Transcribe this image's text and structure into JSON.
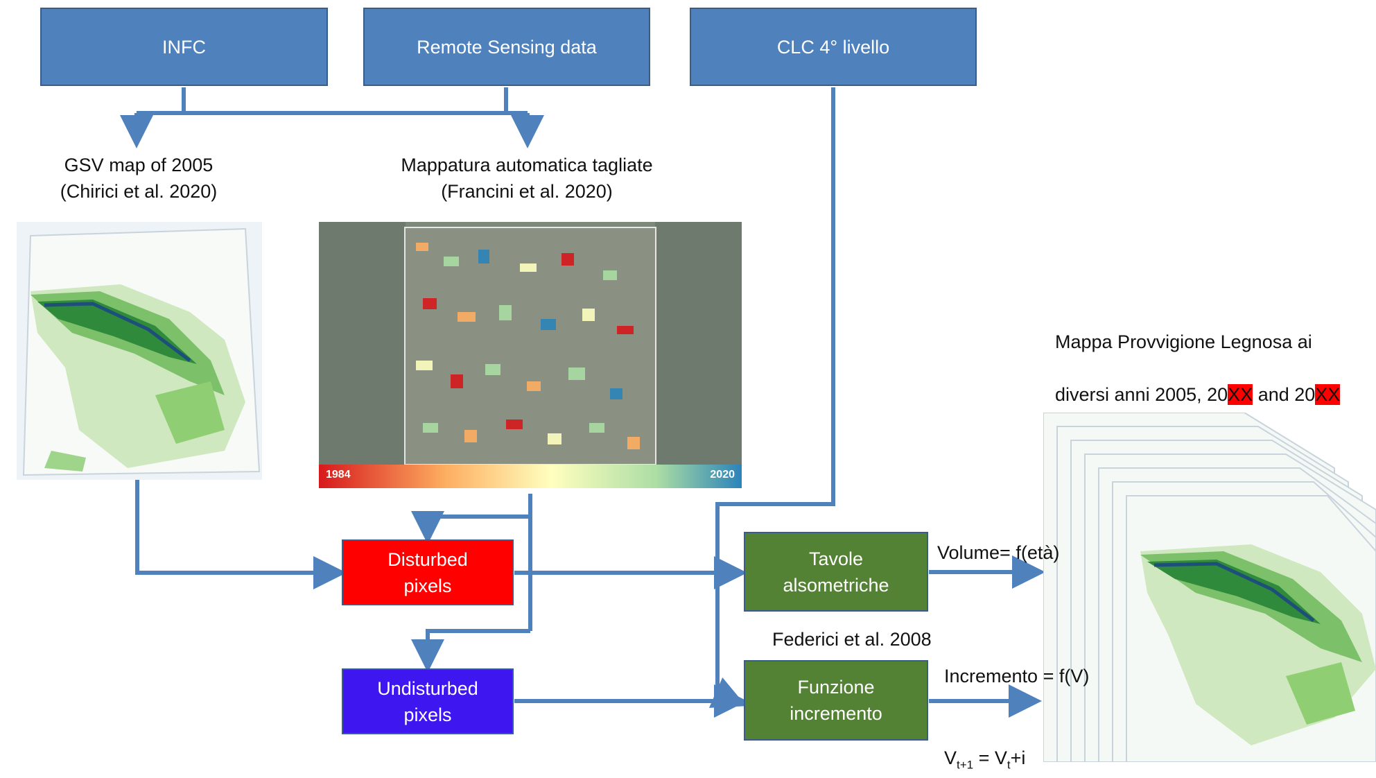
{
  "colors": {
    "box_blue": "#4f81bd",
    "box_red": "#ff0000",
    "box_violet": "#3e16f0",
    "box_green": "#548235",
    "connector": "#4f81bd",
    "highlight": "#ff0000"
  },
  "top_boxes": {
    "infc": "INFC",
    "remote_sensing": "Remote Sensing data",
    "clc": "CLC 4° livello"
  },
  "gsv_caption": "GSV map of 2005\n(Chirici et al. 2020)",
  "tagliate_caption": "Mappatura automatica tagliate\n(Francini et al. 2020)",
  "satellite_legend": {
    "start": "1984",
    "end": "2020"
  },
  "result_caption": {
    "line1": "Mappa Provvigione Legnosa ai",
    "line2_a": "diversi anni 2005, 20",
    "line2_hl1": "XX",
    "line2_b": " and 20",
    "line2_hl2": "XX"
  },
  "pixel_boxes": {
    "disturbed": "Disturbed\npixels",
    "undisturbed": "Undisturbed\npixels"
  },
  "model_boxes": {
    "tavole": "Tavole\nalsometriche",
    "funzione": "Funzione\nincremento"
  },
  "labels": {
    "volume": "Volume= f(età)",
    "federici": "Federici et al. 2008",
    "incremento": "Incremento = f(V)",
    "formula": {
      "v1": "V",
      "s1": "t+1",
      "eq": " = V",
      "s2": "t",
      "plus": "+i"
    }
  }
}
